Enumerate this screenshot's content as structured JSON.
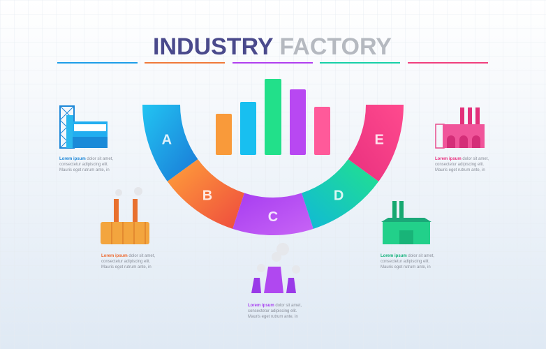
{
  "title": {
    "first": "INDUSTRY",
    "second": "FACTORY"
  },
  "segments": [
    {
      "letter": "A"
    },
    {
      "letter": "B"
    },
    {
      "letter": "C"
    },
    {
      "letter": "D"
    },
    {
      "letter": "E"
    }
  ],
  "items": [
    {
      "highlight": "Lorem ipsum",
      "lines": [
        "dolor sit amet,",
        "consectetur adipiscing elit.",
        "Mauris eget rutrum ante, in"
      ]
    },
    {
      "highlight": "Lorem ipsum",
      "lines": [
        "dolor sit amet,",
        "consectetur adipiscing elit.",
        "Mauris eget rutrum ante, in"
      ]
    },
    {
      "highlight": "Lorem ipsum",
      "lines": [
        "dolor sit amet,",
        "consectetur adipiscing elit.",
        "Mauris eget rutrum ante, in"
      ]
    },
    {
      "highlight": "Lorem ipsum",
      "lines": [
        "dolor sit amet,",
        "consectetur adipiscing elit.",
        "Mauris eget rutrum ante, in"
      ]
    },
    {
      "highlight": "Lorem ipsum",
      "lines": [
        "dolor sit amet,",
        "consectetur adipiscing elit.",
        "Mauris eget rutrum ante, in"
      ]
    }
  ]
}
